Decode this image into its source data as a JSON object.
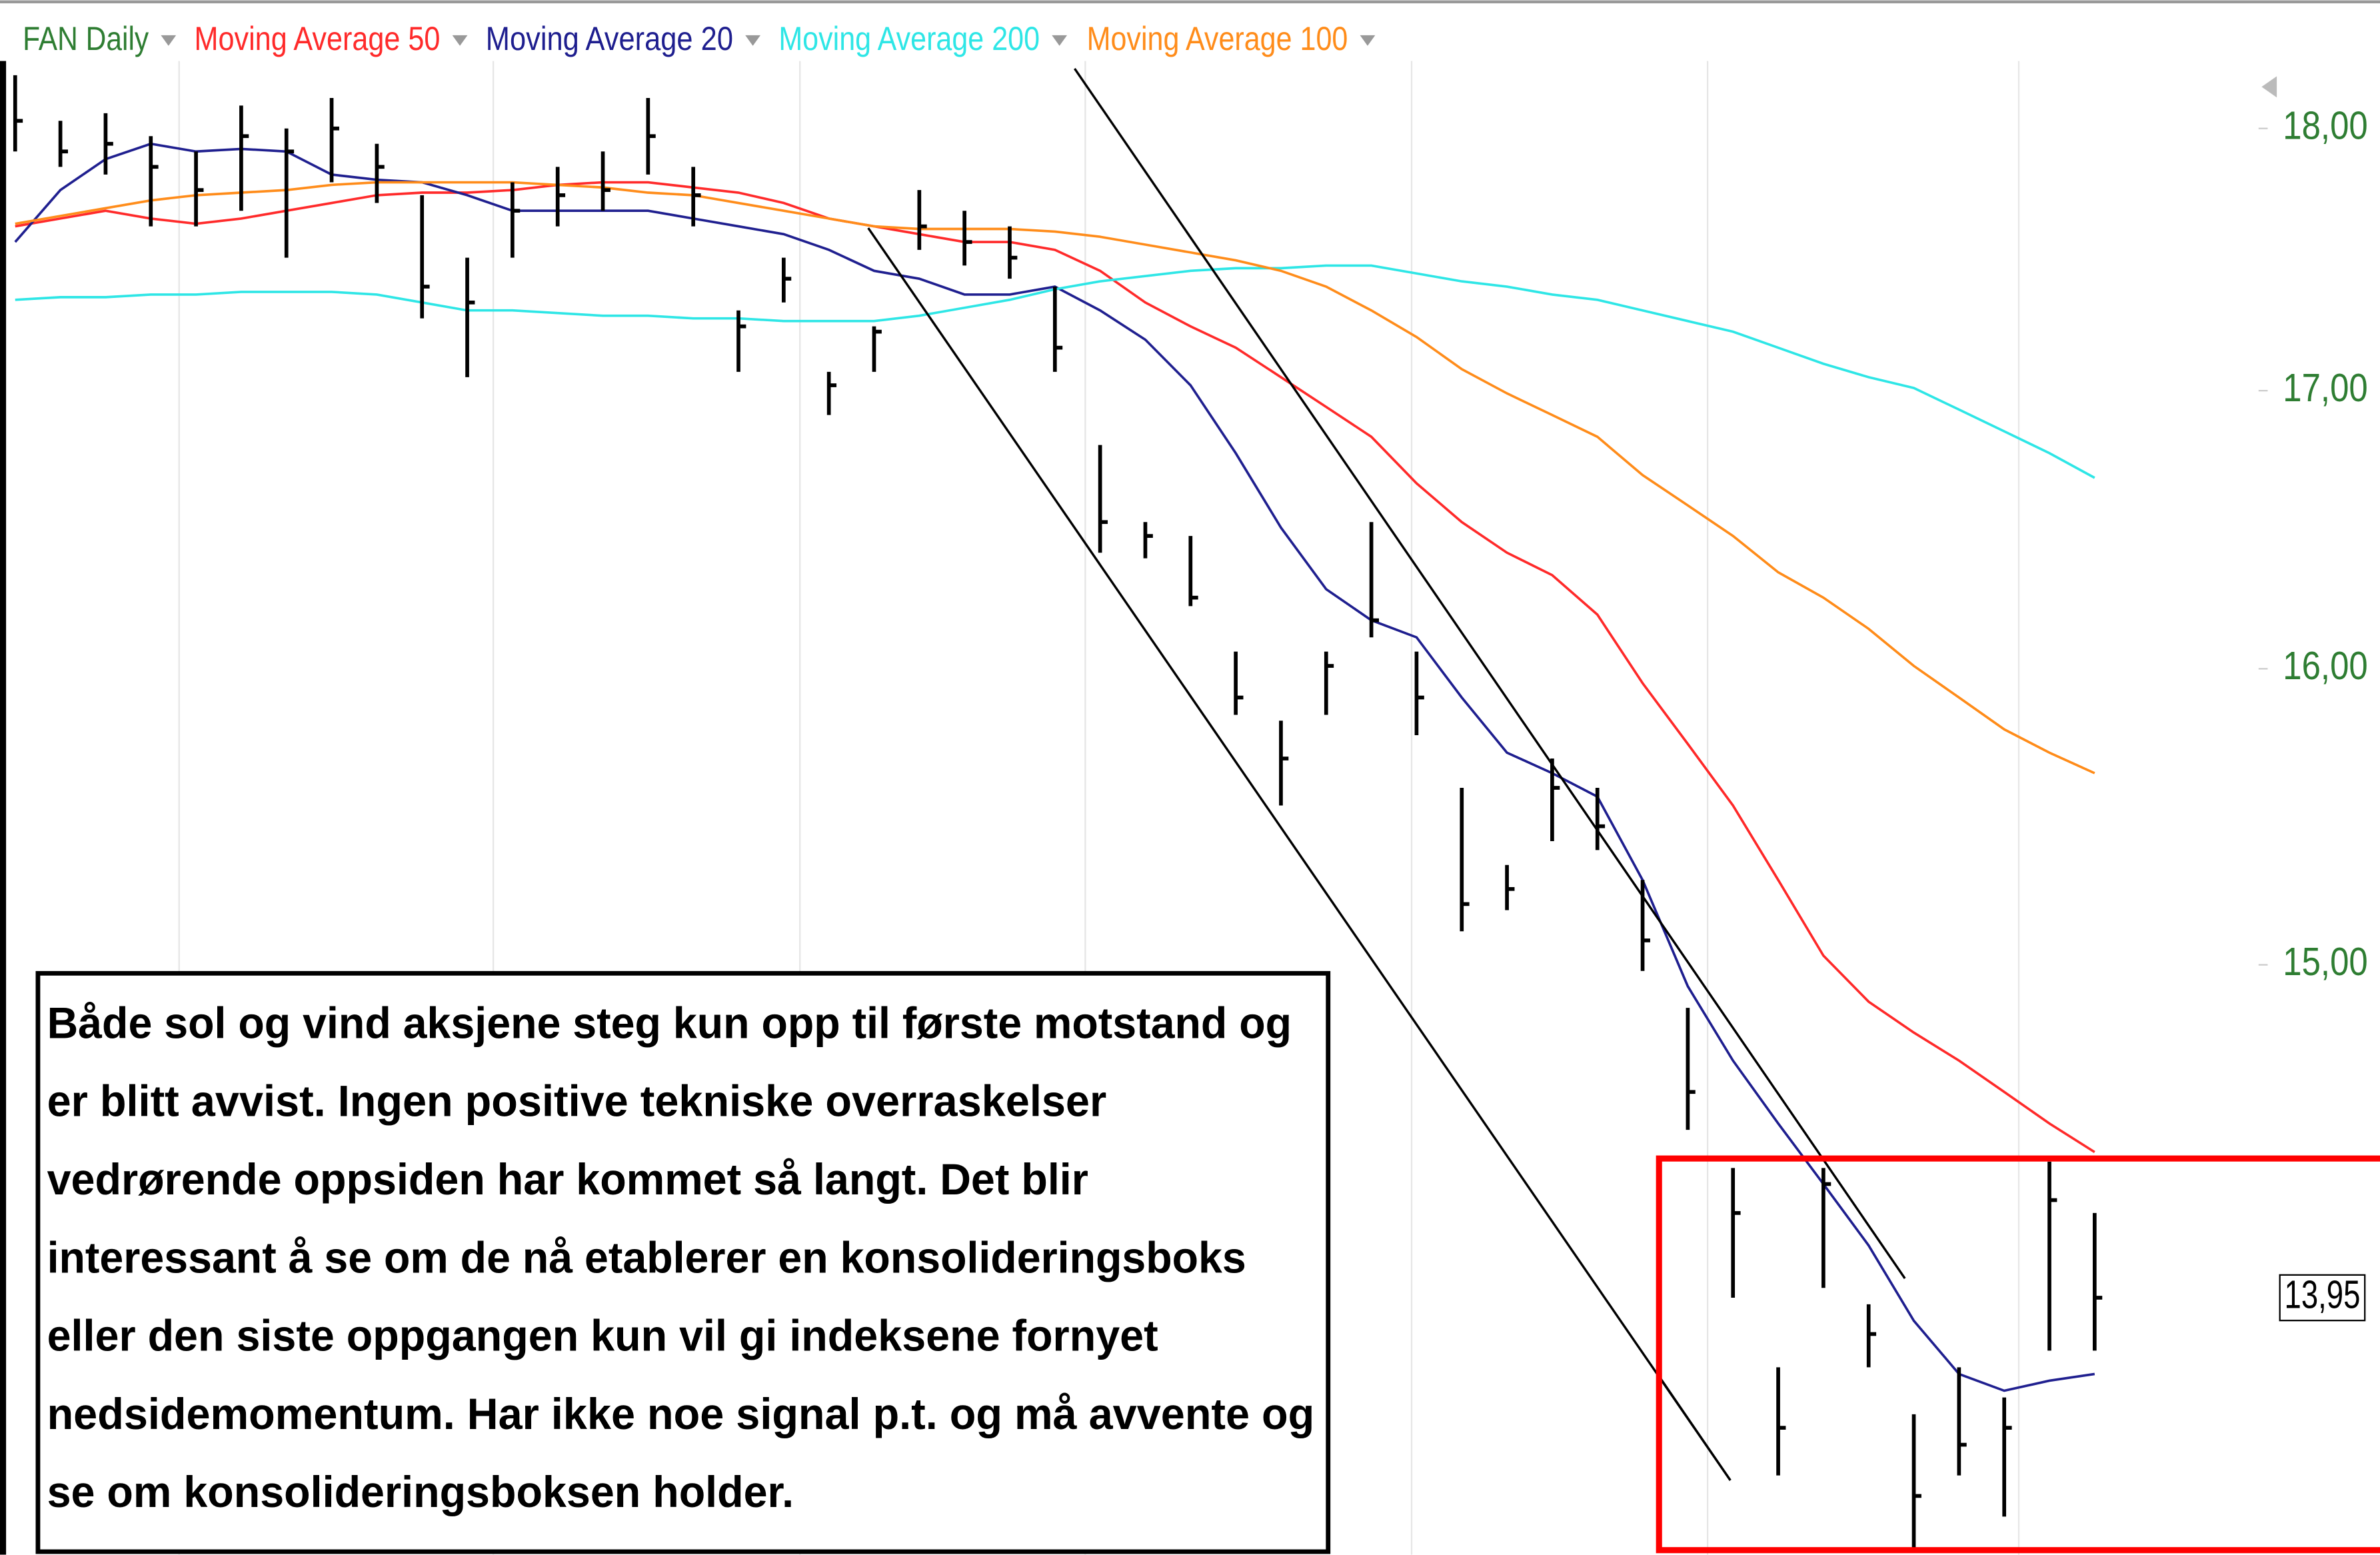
{
  "chart_data": {
    "type": "ohlc",
    "log": true,
    "ylim": [
      13.19,
      18.51
    ],
    "yticks": [
      {
        "value": 18,
        "label": "18,00"
      },
      {
        "value": 17,
        "label": "17,00"
      },
      {
        "value": 16,
        "label": "16,00"
      },
      {
        "value": 15,
        "label": "15,00"
      }
    ],
    "series": [
      {
        "name": "FAN Daily",
        "color": "#2e7d32",
        "bar_color": "#000000",
        "high": [
          18.21,
          18.03,
          18.06,
          17.97,
          17.91,
          18.09,
          18.0,
          18.12,
          17.94,
          17.74,
          17.5,
          17.79,
          17.85,
          17.91,
          18.12,
          17.85,
          17.3,
          17.5,
          17.07,
          17.24,
          17.76,
          17.68,
          17.62,
          17.39,
          16.8,
          16.52,
          16.47,
          16.06,
          15.82,
          16.06,
          16.52,
          16.06,
          15.59,
          15.33,
          15.69,
          15.59,
          15.28,
          14.86,
          14.35,
          13.74,
          14.35,
          13.93,
          13.6,
          13.74,
          13.65,
          14.37,
          14.21
        ],
        "low": [
          17.91,
          17.85,
          17.82,
          17.62,
          17.62,
          17.68,
          17.5,
          17.79,
          17.71,
          17.27,
          17.05,
          17.5,
          17.62,
          17.68,
          17.82,
          17.62,
          17.07,
          17.33,
          16.91,
          17.07,
          17.53,
          17.47,
          17.42,
          17.07,
          16.41,
          16.39,
          16.22,
          15.84,
          15.53,
          15.84,
          16.11,
          15.77,
          15.11,
          15.18,
          15.41,
          15.38,
          14.98,
          14.47,
          13.95,
          13.42,
          13.98,
          13.74,
          13.21,
          13.42,
          13.3,
          13.79,
          13.79
        ],
        "close": [
          18.03,
          17.91,
          17.94,
          17.85,
          17.76,
          17.97,
          17.91,
          18.0,
          17.85,
          17.39,
          17.33,
          17.68,
          17.74,
          17.76,
          17.97,
          17.74,
          17.24,
          17.42,
          17.02,
          17.22,
          17.62,
          17.56,
          17.5,
          17.16,
          16.52,
          16.47,
          16.25,
          15.9,
          15.69,
          16.01,
          16.17,
          15.9,
          15.2,
          15.25,
          15.59,
          15.46,
          15.08,
          14.59,
          14.21,
          13.56,
          14.3,
          13.84,
          13.36,
          13.51,
          13.56,
          14.25,
          13.95
        ],
        "last_label": "13,95"
      },
      {
        "name": "Moving Average 50",
        "color": "#ff2a2a",
        "values": [
          17.62,
          17.65,
          17.68,
          17.65,
          17.63,
          17.65,
          17.68,
          17.71,
          17.74,
          17.75,
          17.75,
          17.76,
          17.78,
          17.79,
          17.79,
          17.77,
          17.75,
          17.71,
          17.65,
          17.62,
          17.59,
          17.56,
          17.56,
          17.53,
          17.45,
          17.33,
          17.24,
          17.16,
          17.05,
          16.94,
          16.83,
          16.66,
          16.52,
          16.41,
          16.33,
          16.19,
          15.95,
          15.74,
          15.53,
          15.28,
          15.03,
          14.88,
          14.78,
          14.69,
          14.59,
          14.49,
          14.4
        ]
      },
      {
        "name": "Moving Average 20",
        "color": "#1f1f8f",
        "values": [
          17.56,
          17.76,
          17.88,
          17.94,
          17.91,
          17.92,
          17.91,
          17.82,
          17.8,
          17.79,
          17.74,
          17.68,
          17.68,
          17.68,
          17.68,
          17.65,
          17.62,
          17.59,
          17.53,
          17.45,
          17.42,
          17.36,
          17.36,
          17.39,
          17.3,
          17.19,
          17.02,
          16.77,
          16.5,
          16.28,
          16.17,
          16.11,
          15.9,
          15.71,
          15.64,
          15.56,
          15.28,
          14.93,
          14.69,
          14.49,
          14.3,
          14.11,
          13.88,
          13.72,
          13.67,
          13.7,
          13.72
        ]
      },
      {
        "name": "Moving Average 200",
        "color": "#2ee6e6",
        "values": [
          17.34,
          17.35,
          17.35,
          17.36,
          17.36,
          17.37,
          17.37,
          17.37,
          17.36,
          17.33,
          17.3,
          17.3,
          17.29,
          17.28,
          17.28,
          17.27,
          17.27,
          17.26,
          17.26,
          17.26,
          17.28,
          17.31,
          17.34,
          17.38,
          17.41,
          17.43,
          17.45,
          17.46,
          17.46,
          17.47,
          17.47,
          17.44,
          17.41,
          17.39,
          17.36,
          17.34,
          17.3,
          17.26,
          17.22,
          17.16,
          17.1,
          17.05,
          17.01,
          16.93,
          16.85,
          16.77,
          16.68
        ]
      },
      {
        "name": "Moving Average 100",
        "color": "#ff8c1a",
        "values": [
          17.63,
          17.66,
          17.69,
          17.72,
          17.74,
          17.75,
          17.76,
          17.78,
          17.79,
          17.79,
          17.79,
          17.79,
          17.78,
          17.77,
          17.75,
          17.74,
          17.71,
          17.68,
          17.65,
          17.62,
          17.61,
          17.61,
          17.61,
          17.6,
          17.58,
          17.55,
          17.52,
          17.49,
          17.45,
          17.39,
          17.3,
          17.2,
          17.08,
          16.99,
          16.91,
          16.83,
          16.69,
          16.58,
          16.47,
          16.34,
          16.25,
          16.14,
          16.01,
          15.9,
          15.79,
          15.71,
          15.64
        ]
      }
    ],
    "annotation": {
      "lines": [
        "Både sol og vind aksjene steg kun opp til første motstand og",
        "er blitt avvist. Ingen positive tekniske overraskelser",
        "vedrørende oppsiden har kommet så langt. Det blir",
        "interessant å se om de nå etablerer en konsolideringsboks",
        "eller den siste oppgangen kun vil gi indeksene fornyet",
        "nedsidemomentum. Har ikke noe signal p.t. og må avvente og",
        "se om konsolideringsboksen holder."
      ]
    }
  }
}
